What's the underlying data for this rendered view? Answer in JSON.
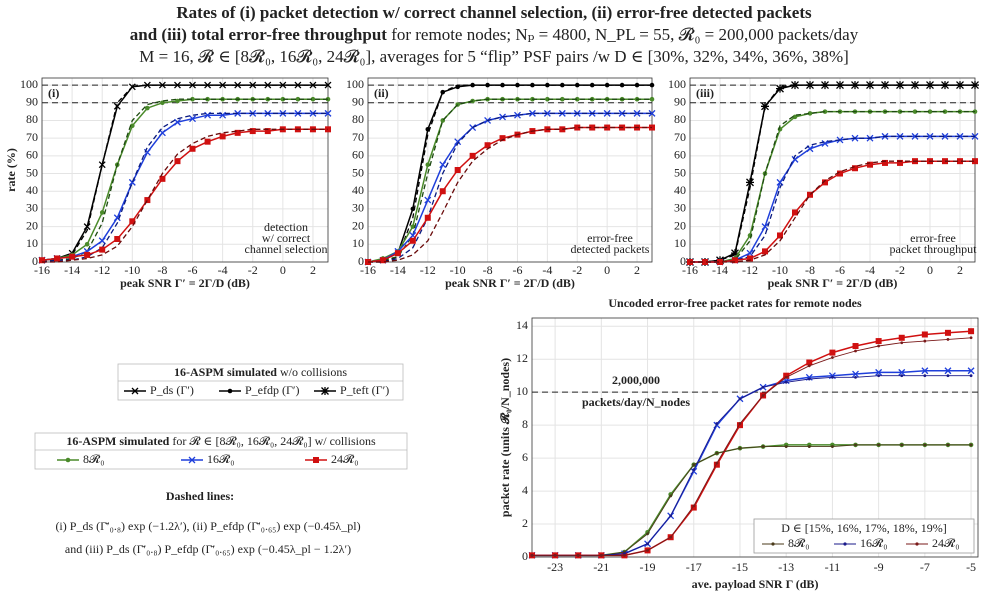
{
  "title": [
    [
      {
        "text": "Rates of (i) packet detection w/ correct channel selection, (ii) error-free detected packets",
        "bold": true
      }
    ],
    [
      {
        "text": "and (iii) total error-free throughput",
        "bold": true
      },
      {
        "text": " for remote nodes;  Nₚ = 4800, N_PL = 55, 𝓡₀ = 200,000 packets/day",
        "bold": false
      }
    ],
    [
      {
        "text": "M = 16,  𝓡 ∈ [8𝓡₀, 16𝓡₀, 24𝓡₀],  averages for 5 “flip” PSF pairs /w D ∈ [30%, 32%, 34%, 36%, 38%]",
        "bold": false
      }
    ]
  ],
  "legend_boxes": [
    {
      "title": [
        {
          "text": "16-ASPM simulated",
          "bold": true
        },
        {
          "text": " w/o collisions",
          "bold": false
        }
      ],
      "entries": [
        {
          "label": "P_ds (Γ′)",
          "color": "#000000",
          "marker": "x"
        },
        {
          "label": "P_efdp (Γ′)",
          "color": "#000000",
          "marker": "dot"
        },
        {
          "label": "P_teft (Γ′)",
          "color": "#000000",
          "marker": "star"
        }
      ]
    },
    {
      "title": [
        {
          "text": "16-ASPM simulated",
          "bold": true
        },
        {
          "text": " for 𝓡 ∈ [8𝓡₀, 16𝓡₀, 24𝓡₀] w/ collisions",
          "bold": false
        }
      ],
      "entries": [
        {
          "label": "8𝓡₀",
          "color": "#4a8a2a",
          "marker": "dot"
        },
        {
          "label": "16𝓡₀",
          "color": "#1f3fdb",
          "marker": "x"
        },
        {
          "label": "24𝓡₀",
          "color": "#d01010",
          "marker": "square"
        }
      ]
    }
  ],
  "dashed_lines": {
    "heading": "Dashed lines:",
    "lines": [
      "(i) P_ds (Γ̄′₀.₈) exp (−1.2λ′),    (ii) P_efdp (Γ̄′₀.₆₅) exp (−0.45λ_pl)",
      "and  (iii) P_ds (Γ̄′₀.₈) P_efdp (Γ̄′₀.₆₅) exp (−0.45λ_pl − 1.2λ′)"
    ]
  },
  "chart_data": [
    {
      "type": "line",
      "panel": "(i)",
      "ylabel": "rate (%)",
      "xlabel": "peak SNR  Γ′ = 2Γ/D (dB)",
      "annotation": [
        "detection",
        "w/ correct",
        "channel selection"
      ],
      "x": [
        -16,
        -15,
        -14,
        -13,
        -12,
        -11,
        -10,
        -9,
        -8,
        -7,
        -6,
        -5,
        -4,
        -3,
        -2,
        -1,
        0,
        1,
        2,
        3
      ],
      "xlim": [
        -16,
        3
      ],
      "xticks": [
        -16,
        -14,
        -12,
        -10,
        -8,
        -6,
        -4,
        -2,
        0,
        2
      ],
      "ylim": [
        0,
        104
      ],
      "yticks": [
        0,
        10,
        20,
        30,
        40,
        50,
        60,
        70,
        80,
        90,
        100
      ],
      "grid": true,
      "ref_lines": [
        90,
        100
      ],
      "series": [
        {
          "color": "#000000",
          "style": "solid",
          "marker": "x",
          "values": [
            1,
            2,
            5,
            20,
            55,
            88,
            99,
            100,
            100,
            100,
            100,
            100,
            100,
            100,
            100,
            100,
            100,
            100,
            100,
            100
          ]
        },
        {
          "color": "#000000",
          "style": "dashed",
          "values": [
            1,
            2,
            4,
            18,
            55,
            90,
            99,
            100,
            100,
            100,
            100,
            100,
            100,
            100,
            100,
            100,
            100,
            100,
            100,
            100
          ]
        },
        {
          "color": "#4a8a2a",
          "style": "solid",
          "marker": "dot",
          "values": [
            1,
            2,
            4,
            10,
            28,
            55,
            77,
            87,
            90,
            91,
            92,
            92,
            92,
            92,
            92,
            92,
            92,
            92,
            92,
            92
          ]
        },
        {
          "color": "#1d4a10",
          "style": "dashed",
          "values": [
            1,
            1,
            2,
            6,
            22,
            55,
            80,
            89,
            91,
            92,
            92,
            92,
            92,
            92,
            92,
            92,
            92,
            92,
            92,
            92
          ]
        },
        {
          "color": "#1f3fdb",
          "style": "solid",
          "marker": "x",
          "values": [
            1,
            2,
            3,
            6,
            12,
            25,
            45,
            62,
            73,
            79,
            81,
            83,
            83,
            84,
            84,
            84,
            84,
            84,
            84,
            84
          ]
        },
        {
          "color": "#0a1a80",
          "style": "dashed",
          "values": [
            0,
            1,
            1,
            3,
            8,
            22,
            45,
            65,
            76,
            81,
            83,
            84,
            84,
            84,
            84,
            84,
            84,
            84,
            84,
            84
          ]
        },
        {
          "color": "#d01010",
          "style": "solid",
          "marker": "square",
          "values": [
            1,
            2,
            3,
            4,
            7,
            13,
            23,
            35,
            47,
            57,
            64,
            68,
            71,
            73,
            74,
            74,
            75,
            75,
            75,
            75
          ]
        },
        {
          "color": "#6a0a0a",
          "style": "dashed",
          "values": [
            0,
            0,
            1,
            2,
            4,
            9,
            20,
            35,
            50,
            61,
            67,
            71,
            73,
            74,
            75,
            75,
            75,
            75,
            75,
            75
          ]
        }
      ]
    },
    {
      "type": "line",
      "panel": "(ii)",
      "xlabel": "peak SNR  Γ′ = 2Γ/D (dB)",
      "annotation": [
        "error-free",
        "detected packets"
      ],
      "x": [
        -16,
        -15,
        -14,
        -13,
        -12,
        -11,
        -10,
        -9,
        -8,
        -7,
        -6,
        -5,
        -4,
        -3,
        -2,
        -1,
        0,
        1,
        2,
        3
      ],
      "xlim": [
        -16,
        3
      ],
      "xticks": [
        -16,
        -14,
        -12,
        -10,
        -8,
        -6,
        -4,
        -2,
        0,
        2
      ],
      "ylim": [
        0,
        104
      ],
      "yticks": [
        0,
        10,
        20,
        30,
        40,
        50,
        60,
        70,
        80,
        90,
        100
      ],
      "grid": true,
      "ref_lines": [
        90,
        100
      ],
      "series": [
        {
          "color": "#000000",
          "style": "solid",
          "marker": "dot",
          "values": [
            0,
            1,
            5,
            30,
            75,
            96,
            99,
            100,
            100,
            100,
            100,
            100,
            100,
            100,
            100,
            100,
            100,
            100,
            100,
            100
          ]
        },
        {
          "color": "#000000",
          "style": "dashed",
          "values": [
            0,
            0,
            3,
            25,
            72,
            96,
            100,
            100,
            100,
            100,
            100,
            100,
            100,
            100,
            100,
            100,
            100,
            100,
            100,
            100
          ]
        },
        {
          "color": "#4a8a2a",
          "style": "solid",
          "marker": "dot",
          "values": [
            0,
            2,
            6,
            20,
            55,
            80,
            89,
            91,
            92,
            92,
            92,
            92,
            92,
            92,
            92,
            92,
            92,
            92,
            92,
            92
          ]
        },
        {
          "color": "#1d4a10",
          "style": "dashed",
          "values": [
            0,
            1,
            3,
            15,
            50,
            80,
            89,
            91,
            92,
            92,
            92,
            92,
            92,
            92,
            92,
            92,
            92,
            92,
            92,
            92
          ]
        },
        {
          "color": "#1f3fdb",
          "style": "solid",
          "marker": "x",
          "values": [
            0,
            1,
            6,
            15,
            35,
            55,
            68,
            76,
            80,
            82,
            83,
            84,
            84,
            84,
            84,
            84,
            84,
            84,
            84,
            84
          ]
        },
        {
          "color": "#0a1a80",
          "style": "dashed",
          "values": [
            0,
            0,
            2,
            8,
            25,
            50,
            67,
            76,
            80,
            82,
            83,
            84,
            84,
            84,
            84,
            84,
            84,
            84,
            84,
            84
          ]
        },
        {
          "color": "#d01010",
          "style": "solid",
          "marker": "square",
          "values": [
            0,
            1,
            5,
            12,
            25,
            40,
            52,
            60,
            66,
            70,
            72,
            74,
            75,
            75,
            76,
            76,
            76,
            76,
            76,
            76
          ]
        },
        {
          "color": "#6a0a0a",
          "style": "dashed",
          "values": [
            0,
            0,
            1,
            4,
            12,
            28,
            45,
            57,
            64,
            69,
            72,
            74,
            75,
            75,
            76,
            76,
            76,
            76,
            76,
            76
          ]
        }
      ]
    },
    {
      "type": "line",
      "panel": "(iii)",
      "xlabel": "peak SNR  Γ′ = 2Γ/D (dB)",
      "annotation": [
        "error-free",
        "packet throughput"
      ],
      "x": [
        -16,
        -15,
        -14,
        -13,
        -12,
        -11,
        -10,
        -9,
        -8,
        -7,
        -6,
        -5,
        -4,
        -3,
        -2,
        -1,
        0,
        1,
        2,
        3
      ],
      "xlim": [
        -16,
        3
      ],
      "xticks": [
        -16,
        -14,
        -12,
        -10,
        -8,
        -6,
        -4,
        -2,
        0,
        2
      ],
      "ylim": [
        0,
        104
      ],
      "yticks": [
        0,
        10,
        20,
        30,
        40,
        50,
        60,
        70,
        80,
        90,
        100
      ],
      "grid": true,
      "ref_lines": [
        90,
        100
      ],
      "series": [
        {
          "color": "#000000",
          "style": "solid",
          "marker": "star",
          "values": [
            0,
            0,
            1,
            5,
            45,
            88,
            98,
            100,
            100,
            100,
            100,
            100,
            100,
            100,
            100,
            100,
            100,
            100,
            100,
            100
          ]
        },
        {
          "color": "#000000",
          "style": "dashed",
          "values": [
            0,
            0,
            1,
            4,
            42,
            88,
            99,
            100,
            100,
            100,
            100,
            100,
            100,
            100,
            100,
            100,
            100,
            100,
            100,
            100
          ]
        },
        {
          "color": "#4a8a2a",
          "style": "solid",
          "marker": "dot",
          "values": [
            0,
            0,
            0,
            2,
            15,
            50,
            75,
            82,
            84,
            85,
            85,
            85,
            85,
            85,
            85,
            85,
            85,
            85,
            85,
            85
          ]
        },
        {
          "color": "#1d4a10",
          "style": "dashed",
          "values": [
            0,
            0,
            0,
            1,
            12,
            50,
            77,
            83,
            84,
            85,
            85,
            85,
            85,
            85,
            85,
            85,
            85,
            85,
            85,
            85
          ]
        },
        {
          "color": "#1f3fdb",
          "style": "solid",
          "marker": "x",
          "values": [
            0,
            0,
            0,
            1,
            5,
            20,
            45,
            58,
            64,
            67,
            69,
            70,
            70,
            71,
            71,
            71,
            71,
            71,
            71,
            71
          ]
        },
        {
          "color": "#0a1a80",
          "style": "dashed",
          "values": [
            0,
            0,
            0,
            1,
            3,
            15,
            42,
            60,
            66,
            68,
            69,
            70,
            70,
            71,
            71,
            71,
            71,
            71,
            71,
            71
          ]
        },
        {
          "color": "#d01010",
          "style": "solid",
          "marker": "square",
          "values": [
            0,
            0,
            0,
            1,
            2,
            6,
            15,
            28,
            38,
            45,
            50,
            53,
            55,
            56,
            56,
            57,
            57,
            57,
            57,
            57
          ]
        },
        {
          "color": "#6a0a0a",
          "style": "dashed",
          "values": [
            0,
            0,
            0,
            0,
            1,
            4,
            12,
            25,
            38,
            46,
            51,
            54,
            56,
            57,
            57,
            57,
            57,
            57,
            57,
            57
          ]
        }
      ]
    },
    {
      "type": "line",
      "title": "Uncoded error-free packet rates for remote nodes",
      "ylabel": "packet rate (units 𝓡₀/N_nodes)",
      "xlabel": "ave. payload SNR  Γ (dB)",
      "ref_annotation": [
        "2,000,000",
        "packets/day/N_nodes"
      ],
      "legend_title": "D ∈ [15%, 16%, 17%, 18%, 19%]",
      "legend": "lower right",
      "x": [
        -24,
        -23,
        -22,
        -21,
        -20,
        -19,
        -18,
        -17,
        -16,
        -15,
        -14,
        -13,
        -12,
        -11,
        -10,
        -9,
        -8,
        -7,
        -6,
        -5
      ],
      "xlim": [
        -24,
        -4.7
      ],
      "xticks": [
        -23,
        -21,
        -19,
        -17,
        -15,
        -13,
        -11,
        -9,
        -7,
        -5
      ],
      "ylim": [
        0,
        14.5
      ],
      "yticks": [
        0,
        2,
        4,
        6,
        8,
        10,
        12,
        14
      ],
      "grid": true,
      "ref_lines": [
        10
      ],
      "series": [
        {
          "color": "#4a8a2a",
          "style": "solid",
          "weight": "thick",
          "marker": "dot",
          "values": [
            0.1,
            0.1,
            0.1,
            0.1,
            0.3,
            1.5,
            3.8,
            5.6,
            6.3,
            6.6,
            6.7,
            6.8,
            6.8,
            6.8,
            6.8,
            6.8,
            6.8,
            6.8,
            6.8,
            6.8
          ]
        },
        {
          "color": "#1f3fdb",
          "style": "solid",
          "weight": "thick",
          "marker": "x",
          "values": [
            0.1,
            0.1,
            0.1,
            0.1,
            0.2,
            0.8,
            2.5,
            5.2,
            8.0,
            9.6,
            10.3,
            10.7,
            10.9,
            11.0,
            11.1,
            11.2,
            11.2,
            11.3,
            11.3,
            11.3
          ]
        },
        {
          "color": "#d01010",
          "style": "solid",
          "weight": "thick",
          "marker": "square",
          "values": [
            0.1,
            0.1,
            0.1,
            0.1,
            0.1,
            0.4,
            1.2,
            3.0,
            5.6,
            8.0,
            9.8,
            11.0,
            11.8,
            12.4,
            12.8,
            13.1,
            13.3,
            13.5,
            13.6,
            13.7
          ]
        },
        {
          "name": "8𝓡₀",
          "color": "#4a3a1a",
          "style": "solid",
          "weight": "thin",
          "marker": "smalldot",
          "values": [
            0.1,
            0.1,
            0.1,
            0.1,
            0.3,
            1.4,
            3.7,
            5.6,
            6.3,
            6.6,
            6.7,
            6.7,
            6.7,
            6.7,
            6.8,
            6.8,
            6.8,
            6.8,
            6.8,
            6.8
          ]
        },
        {
          "name": "16𝓡₀",
          "color": "#1a1a8a",
          "style": "solid",
          "weight": "thin",
          "marker": "smalldot",
          "values": [
            0.1,
            0.1,
            0.1,
            0.1,
            0.2,
            0.8,
            2.5,
            5.3,
            8.1,
            9.6,
            10.3,
            10.6,
            10.8,
            10.9,
            10.9,
            11.0,
            11.0,
            11.0,
            11.0,
            11.0
          ]
        },
        {
          "name": "24𝓡₀",
          "color": "#7a1a1a",
          "style": "solid",
          "weight": "thin",
          "marker": "smalldot",
          "values": [
            0.1,
            0.1,
            0.1,
            0.1,
            0.1,
            0.4,
            1.2,
            3.1,
            5.7,
            8.1,
            9.8,
            10.9,
            11.6,
            12.1,
            12.5,
            12.8,
            13.0,
            13.1,
            13.2,
            13.3
          ]
        }
      ]
    }
  ]
}
